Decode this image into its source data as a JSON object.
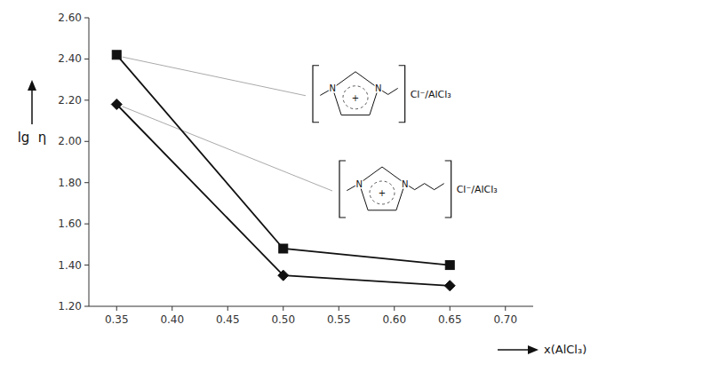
{
  "chart_data": {
    "type": "line",
    "x": [
      0.35,
      0.5,
      0.65
    ],
    "series": [
      {
        "color": "#111111",
        "marker": "square",
        "values": [
          2.42,
          1.48,
          1.4
        ]
      },
      {
        "color": "#111111",
        "marker": "diamond",
        "values": [
          2.18,
          1.35,
          1.3
        ]
      }
    ],
    "x_label": "x(AlCl₃)",
    "y_label": "lg  η",
    "xlim": [
      0.325,
      0.725
    ],
    "ylim": [
      1.2,
      2.6
    ],
    "xticks": [
      0.35,
      {
        "value": 0.4,
        "label": "0.40"
      },
      0.45,
      {
        "value": 0.5,
        "label": "0.50"
      },
      0.55,
      {
        "value": 0.6,
        "label": "0.60"
      },
      0.65,
      {
        "value": 0.7,
        "label": "0.70"
      }
    ],
    "yticks": [
      {
        "value": 1.2,
        "label": "1.20"
      },
      {
        "value": 1.4,
        "label": "1.40"
      },
      {
        "value": 1.6,
        "label": "1.60"
      },
      {
        "value": 1.8,
        "label": "1.80"
      },
      {
        "value": 2.0,
        "label": "2.00"
      },
      {
        "value": 2.2,
        "label": "2.20"
      },
      {
        "value": 2.4,
        "label": "2.40"
      },
      {
        "value": 2.6,
        "label": "2.60"
      }
    ],
    "grid": false,
    "annotations": [
      {
        "text": "Cl⁻/AlCl₃",
        "x": 0.355,
        "y": 2.41,
        "atoms": [
          "N",
          "N",
          "+"
        ]
      },
      {
        "text": "Cl⁻/AlCl₃",
        "x": 0.355,
        "y": 2.17,
        "atoms": [
          "N",
          "N",
          "+"
        ]
      }
    ]
  }
}
